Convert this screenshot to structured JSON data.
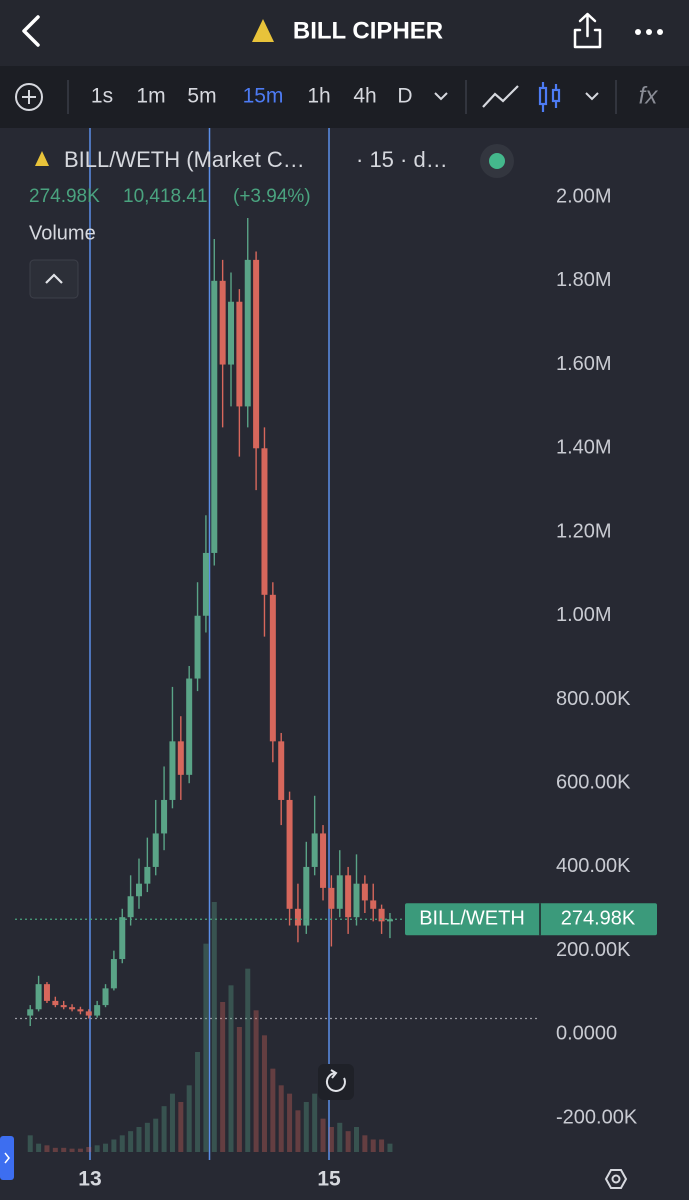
{
  "header": {
    "title": "BILL CIPHER"
  },
  "toolbar": {
    "intervals": [
      "1s",
      "1m",
      "5m",
      "15m",
      "1h",
      "4h",
      "D"
    ],
    "active": "15m"
  },
  "legend": {
    "symbol": "BILL/WETH (Market C…",
    "interval": "· 15 · d…",
    "stats": [
      "274.98K",
      "10,418.41",
      "(+3.94%)"
    ],
    "volume_label": "Volume"
  },
  "price_tag": {
    "name": "BILL/WETH",
    "value": 274980,
    "label": "274.98K"
  },
  "chart_data": {
    "type": "candlestick",
    "up_color": "#5aa487",
    "down_color": "#d7675c",
    "day_line_color": "#5b8ee8",
    "x": [
      12.5,
      12.57,
      12.64,
      12.71,
      12.78,
      12.85,
      12.92,
      12.99,
      13.06,
      13.13,
      13.2,
      13.27,
      13.34,
      13.41,
      13.48,
      13.55,
      13.62,
      13.69,
      13.76,
      13.83,
      13.9,
      13.97,
      14.04,
      14.11,
      14.18,
      14.25,
      14.32,
      14.39,
      14.46,
      14.53,
      14.6,
      14.67,
      14.74,
      14.81,
      14.88,
      14.95,
      15.02,
      15.09,
      15.16,
      15.23,
      15.3,
      15.37,
      15.44,
      15.51
    ],
    "open": [
      45000,
      60000,
      120000,
      80000,
      70000,
      65000,
      60000,
      55000,
      45000,
      70000,
      110000,
      180000,
      280000,
      330000,
      360000,
      400000,
      480000,
      560000,
      700000,
      620000,
      850000,
      1000000,
      1150000,
      1800000,
      1600000,
      1750000,
      1500000,
      1850000,
      1400000,
      1050000,
      700000,
      560000,
      300000,
      260000,
      400000,
      480000,
      350000,
      300000,
      380000,
      280000,
      360000,
      320000,
      300000,
      270000
    ],
    "high": [
      70000,
      140000,
      125000,
      90000,
      80000,
      72000,
      66000,
      60000,
      80000,
      120000,
      200000,
      300000,
      380000,
      420000,
      470000,
      560000,
      640000,
      830000,
      760000,
      880000,
      1080000,
      1240000,
      1900000,
      1850000,
      1820000,
      1780000,
      1950000,
      1870000,
      1450000,
      1080000,
      720000,
      580000,
      360000,
      460000,
      570000,
      500000,
      380000,
      440000,
      400000,
      430000,
      380000,
      360000,
      310000,
      290000
    ],
    "low": [
      20000,
      55000,
      75000,
      65000,
      60000,
      55000,
      48000,
      38000,
      40000,
      65000,
      105000,
      170000,
      260000,
      300000,
      340000,
      380000,
      440000,
      540000,
      560000,
      600000,
      820000,
      960000,
      1120000,
      1450000,
      1500000,
      1380000,
      1450000,
      1300000,
      950000,
      650000,
      500000,
      260000,
      220000,
      240000,
      380000,
      320000,
      210000,
      280000,
      240000,
      260000,
      290000,
      270000,
      240000,
      230000
    ],
    "close": [
      60000,
      120000,
      80000,
      70000,
      65000,
      60000,
      55000,
      45000,
      70000,
      110000,
      180000,
      280000,
      330000,
      360000,
      400000,
      480000,
      560000,
      700000,
      620000,
      850000,
      1000000,
      1150000,
      1800000,
      1600000,
      1750000,
      1500000,
      1850000,
      1400000,
      1050000,
      700000,
      560000,
      300000,
      260000,
      400000,
      480000,
      350000,
      300000,
      380000,
      280000,
      360000,
      320000,
      300000,
      270000,
      274980
    ],
    "volume": [
      20,
      10,
      8,
      5,
      5,
      4,
      4,
      6,
      8,
      10,
      15,
      20,
      25,
      30,
      35,
      40,
      55,
      70,
      60,
      80,
      120,
      250,
      300,
      180,
      200,
      150,
      220,
      170,
      140,
      100,
      80,
      70,
      50,
      60,
      70,
      40,
      30,
      35,
      25,
      30,
      20,
      15,
      15,
      10
    ],
    "xlim": [
      12.247,
      16.891
    ],
    "xticks": [
      {
        "value": 13,
        "label": "13"
      },
      {
        "value": 15,
        "label": "15"
      }
    ],
    "day_lines": [
      13,
      14,
      15
    ],
    "reference_lines": [
      38000
    ],
    "ylim": [
      -300000,
      2165000
    ],
    "yticks": [
      {
        "value": -200000,
        "label": "-200.00K"
      },
      {
        "value": 0,
        "label": "0.0000"
      },
      {
        "value": 200000,
        "label": "200.00K"
      },
      {
        "value": 400000,
        "label": "400.00K"
      },
      {
        "value": 600000,
        "label": "600.00K"
      },
      {
        "value": 800000,
        "label": "800.00K"
      },
      {
        "value": 1000000,
        "label": "1.00M"
      },
      {
        "value": 1200000,
        "label": "1.20M"
      },
      {
        "value": 1400000,
        "label": "1.40M"
      },
      {
        "value": 1600000,
        "label": "1.60M"
      },
      {
        "value": 1800000,
        "label": "1.80M"
      },
      {
        "value": 2000000,
        "label": "2.00M"
      }
    ]
  }
}
